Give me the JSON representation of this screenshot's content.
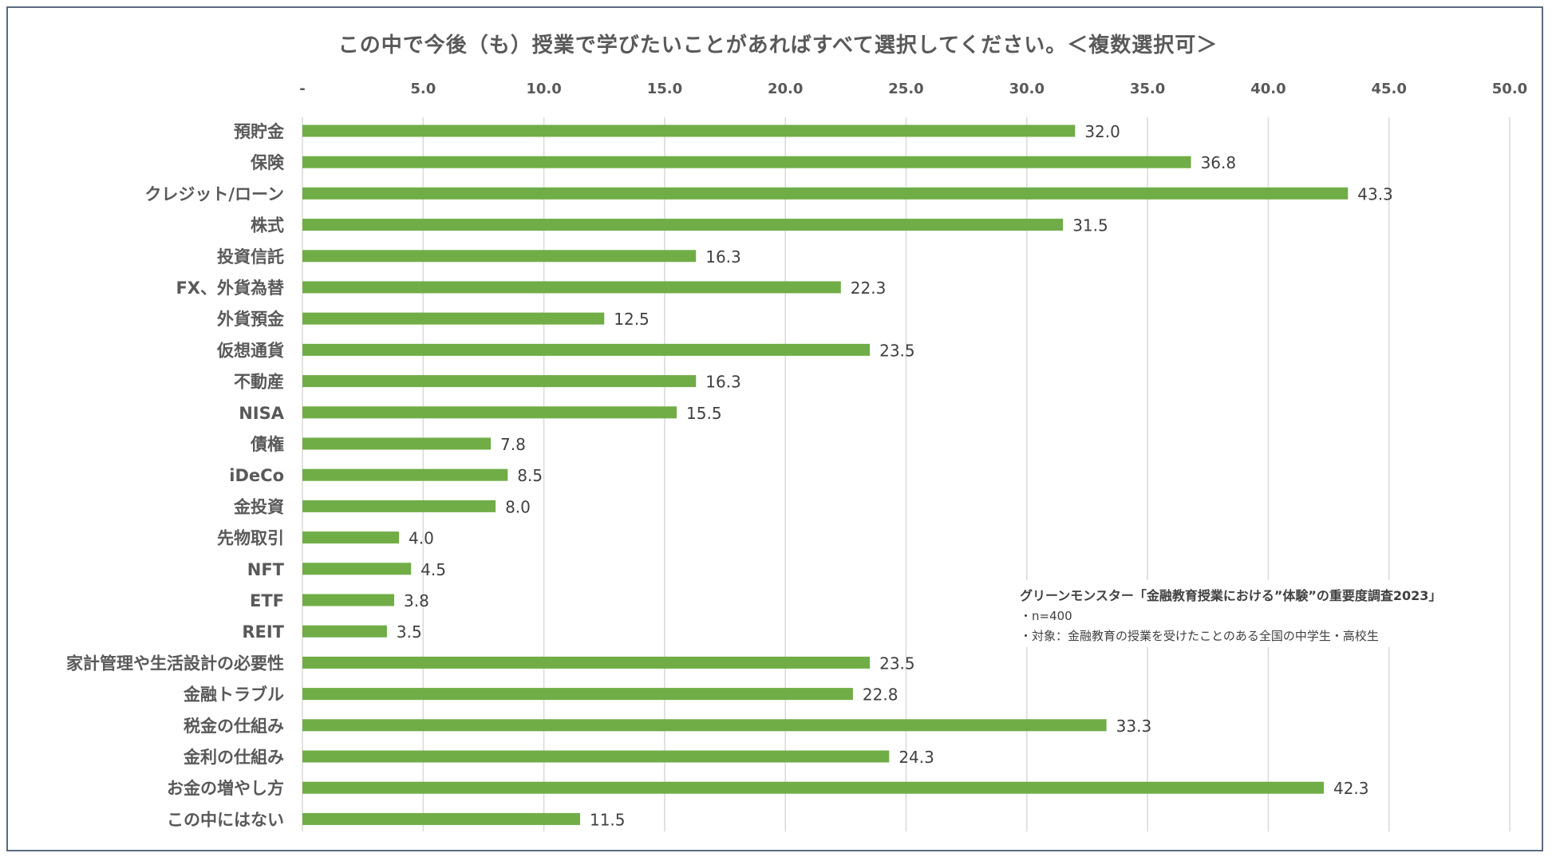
{
  "chart_data": {
    "type": "bar",
    "orientation": "horizontal",
    "title": "この中で今後（も）授業で学びたいことがあればすべて選択してください。＜複数選択可＞",
    "xlim": [
      0,
      50
    ],
    "x_ticks": [
      "-",
      "5.0",
      "10.0",
      "15.0",
      "20.0",
      "25.0",
      "30.0",
      "35.0",
      "40.0",
      "45.0",
      "50.0"
    ],
    "grid": "vertical gridlines",
    "bar_color": "#70ad47",
    "categories": [
      "預貯金",
      "保険",
      "クレジット/ローン",
      "株式",
      "投資信託",
      "FX、外貨為替",
      "外貨預金",
      "仮想通貨",
      "不動産",
      "NISA",
      "債権",
      "iDeCo",
      "金投資",
      "先物取引",
      "NFT",
      "ETF",
      "REIT",
      "家計管理や生活設計の必要性",
      "金融トラブル",
      "税金の仕組み",
      "金利の仕組み",
      "お金の増やし方",
      "この中にはない"
    ],
    "values": [
      32.0,
      36.8,
      43.3,
      31.5,
      16.3,
      22.3,
      12.5,
      23.5,
      16.3,
      15.5,
      7.8,
      8.5,
      8.0,
      4.0,
      4.5,
      3.8,
      3.5,
      23.5,
      22.8,
      33.3,
      24.3,
      42.3,
      11.5
    ],
    "value_labels": [
      "32.0",
      "36.8",
      "43.3",
      "31.5",
      "16.3",
      "22.3",
      "12.5",
      "23.5",
      "16.3",
      "15.5",
      "7.8",
      "8.5",
      "8.0",
      "4.0",
      "4.5",
      "3.8",
      "3.5",
      "23.5",
      "22.8",
      "33.3",
      "24.3",
      "42.3",
      "11.5"
    ],
    "annotation": {
      "source": "グリーンモンスター「金融教育授業における”体験”の重要度調査2023」",
      "lines": [
        "・n=400",
        "・対象：金融教育の授業を受けたことのある全国の中学生・高校生"
      ]
    }
  }
}
